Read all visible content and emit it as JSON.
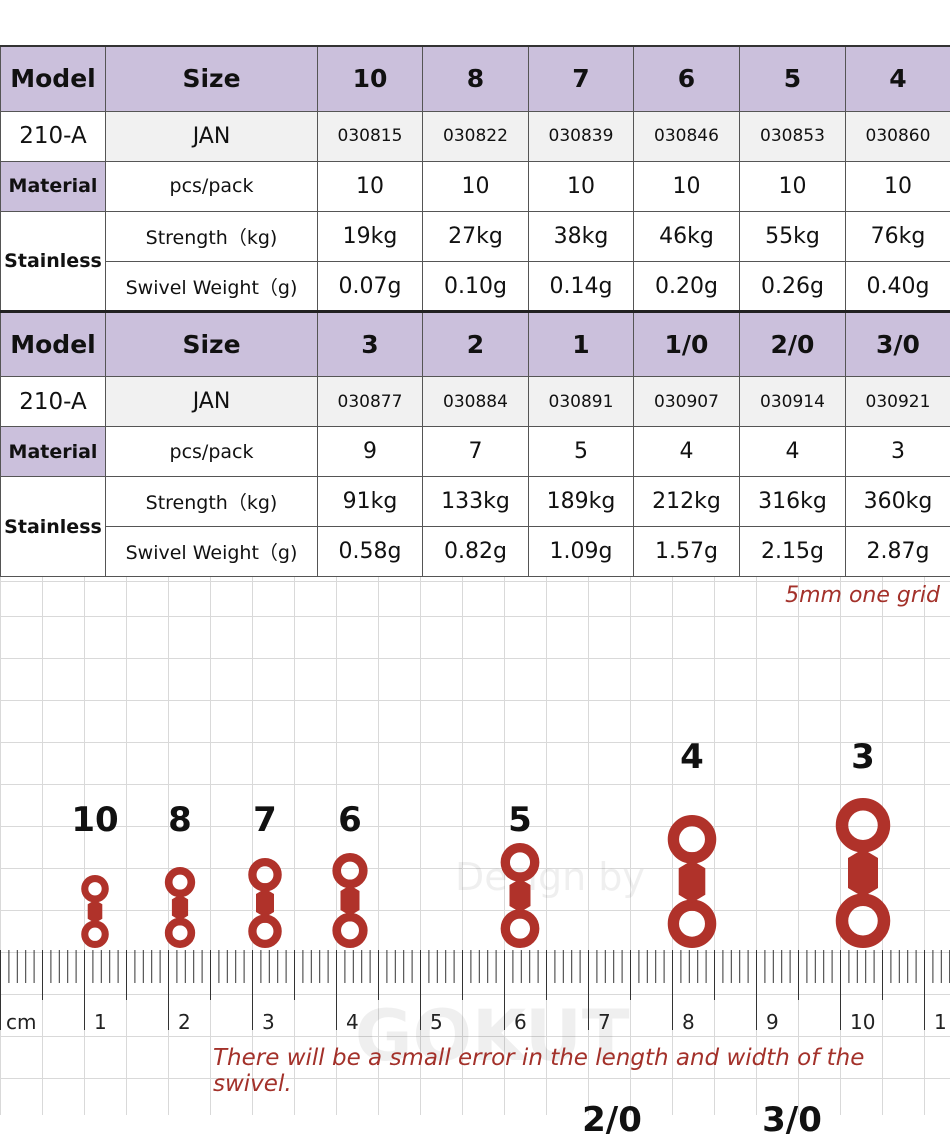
{
  "tables": [
    {
      "header": {
        "model": "Model",
        "size": "Size",
        "sizes": [
          "10",
          "8",
          "7",
          "6",
          "5",
          "4"
        ]
      },
      "jan": {
        "model": "210-A",
        "label": "JAN",
        "codes": [
          "030815",
          "030822",
          "030839",
          "030846",
          "030853",
          "030860"
        ]
      },
      "pcs": {
        "material": "Material",
        "label": "pcs/pack",
        "values": [
          "10",
          "10",
          "10",
          "10",
          "10",
          "10"
        ]
      },
      "strength": {
        "stainless": "Stainless",
        "label": "Strength（kg)",
        "values": [
          "19kg",
          "27kg",
          "38kg",
          "46kg",
          "55kg",
          "76kg"
        ]
      },
      "weight": {
        "label": "Swivel Weight（g)",
        "values": [
          "0.07g",
          "0.10g",
          "0.14g",
          "0.20g",
          "0.26g",
          "0.40g"
        ]
      }
    },
    {
      "header": {
        "model": "Model",
        "size": "Size",
        "sizes": [
          "3",
          "2",
          "1",
          "1/0",
          "2/0",
          "3/0"
        ]
      },
      "jan": {
        "model": "210-A",
        "label": "JAN",
        "codes": [
          "030877",
          "030884",
          "030891",
          "030907",
          "030914",
          "030921"
        ]
      },
      "pcs": {
        "material": "Material",
        "label": "pcs/pack",
        "values": [
          "9",
          "7",
          "5",
          "4",
          "4",
          "3"
        ]
      },
      "strength": {
        "stainless": "Stainless",
        "label": "Strength（kg)",
        "values": [
          "91kg",
          "133kg",
          "189kg",
          "212kg",
          "316kg",
          "360kg"
        ]
      },
      "weight": {
        "label": "Swivel Weight（g)",
        "values": [
          "0.58g",
          "0.82g",
          "1.09g",
          "1.57g",
          "2.15g",
          "2.87g"
        ]
      }
    }
  ],
  "grid_note": "5mm one grid",
  "swivels": [
    "10",
    "8",
    "7",
    "6",
    "5",
    "4",
    "3"
  ],
  "bottom_labels": [
    "2/0",
    "3/0"
  ],
  "ruler": {
    "unit": "cm",
    "labels": [
      "1",
      "2",
      "3",
      "4",
      "5",
      "6",
      "7",
      "8",
      "9",
      "10",
      "1"
    ]
  },
  "error_note": "There will be a small error in the length and width of the swivel.",
  "watermark": [
    "Design by",
    "GOKUT"
  ],
  "colors": {
    "header": "#cbc0dc",
    "swivel": "#b0322a",
    "note": "#a3312a"
  }
}
